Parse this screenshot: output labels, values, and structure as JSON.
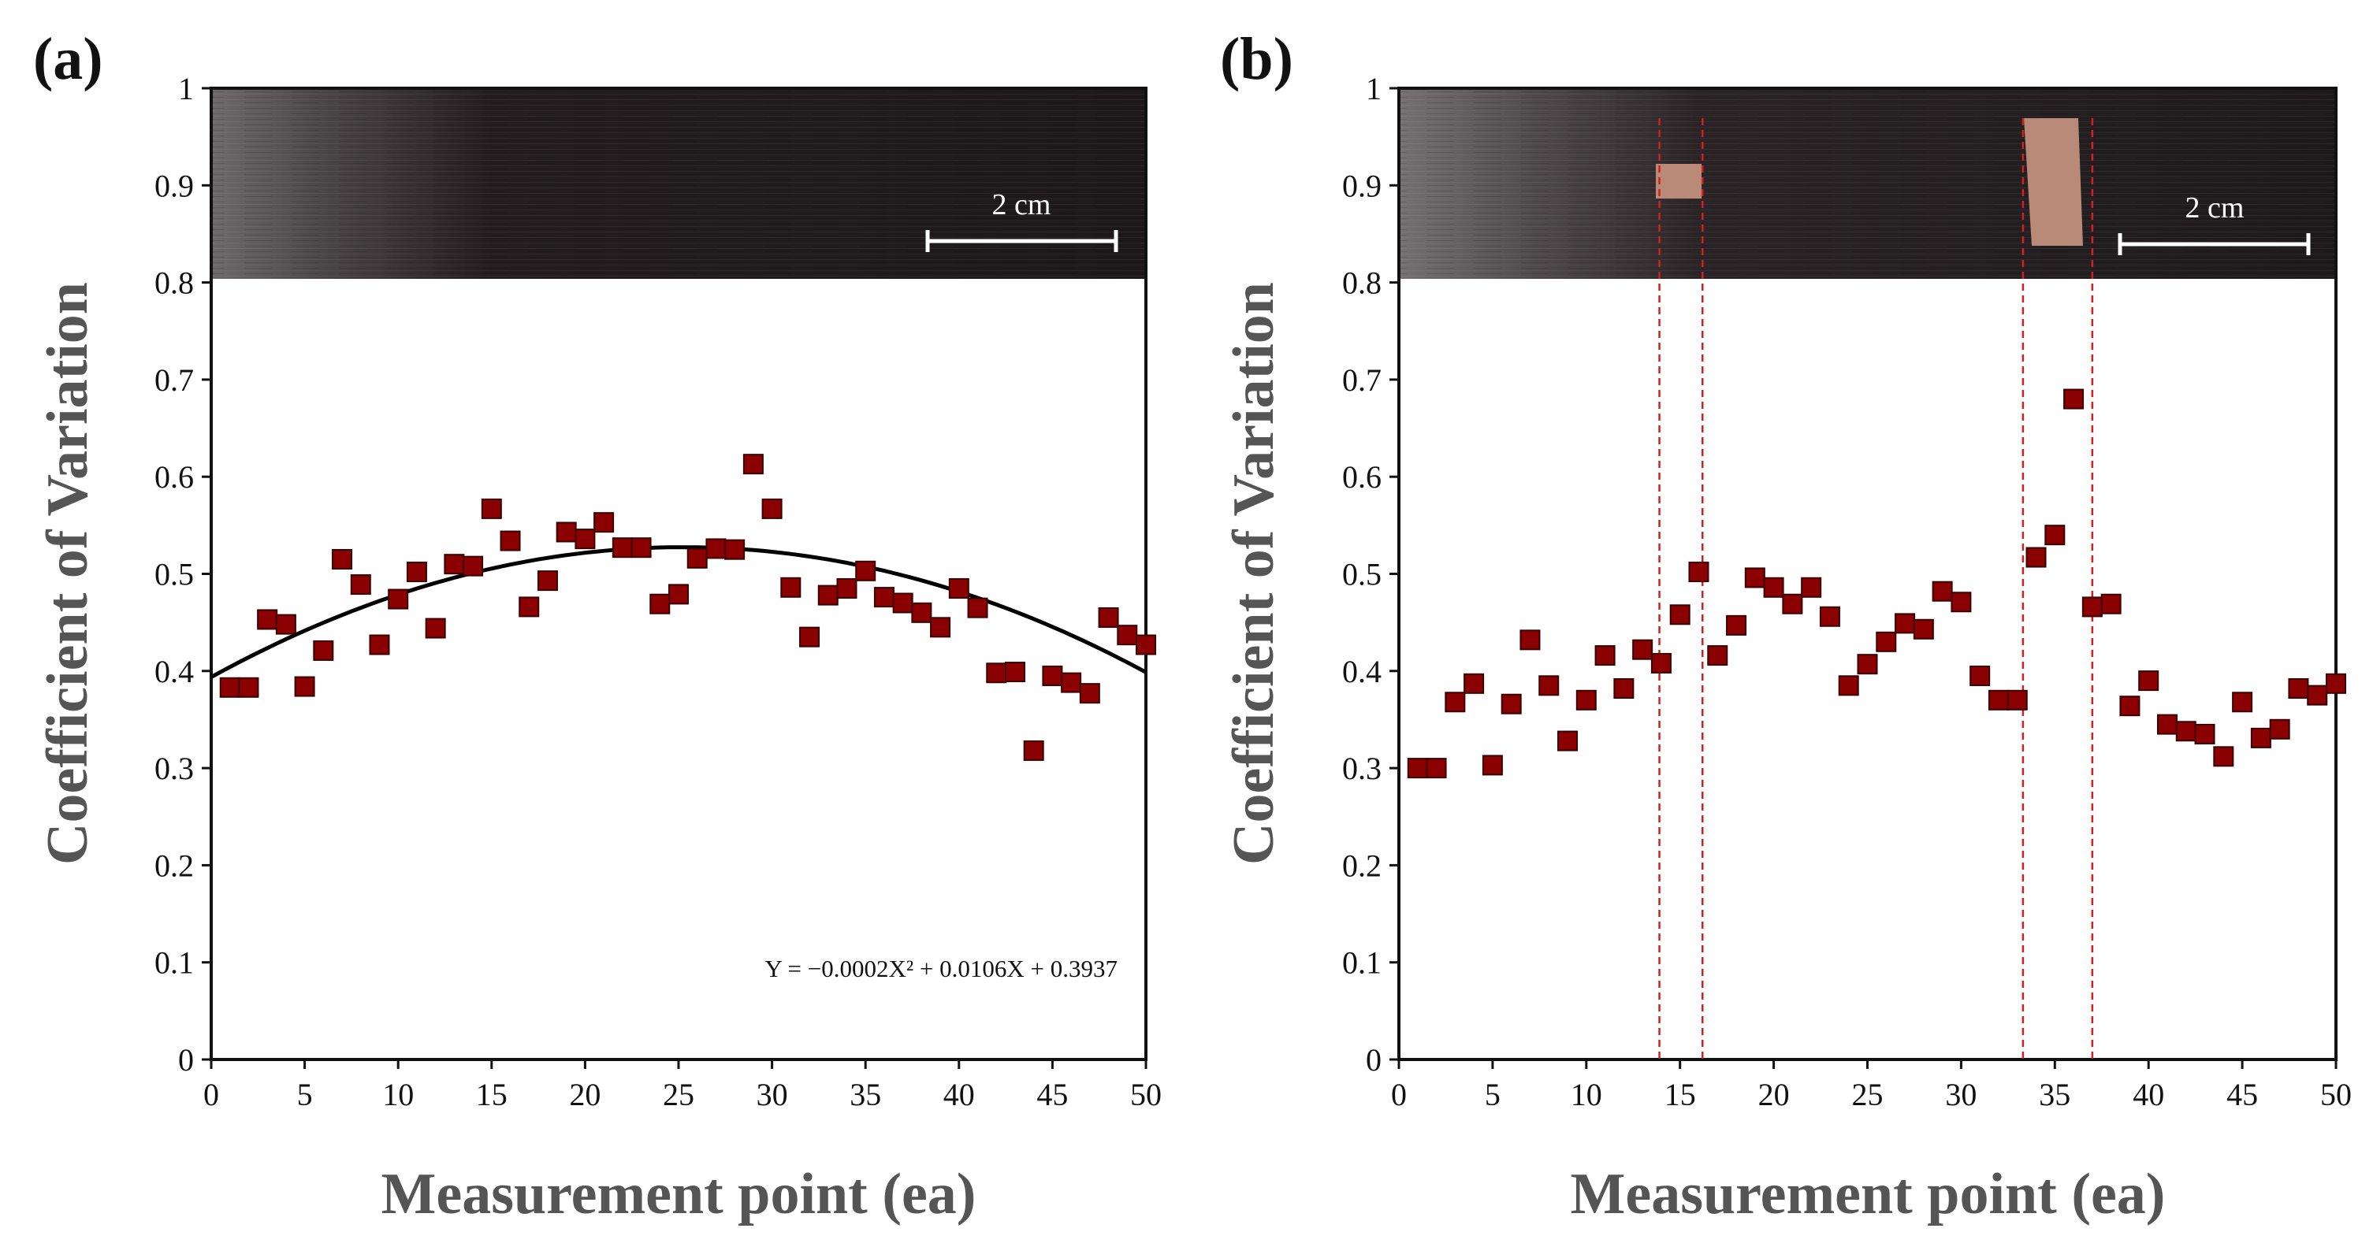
{
  "colors": {
    "marker": "#8b0000",
    "fit_line": "#000000",
    "guide_line": "#d02020",
    "text": "#111111",
    "strip_dark": "#1e1a1c",
    "patch": "#b98a78"
  },
  "chart_data": [
    {
      "panel_label": "(a)",
      "type": "scatter",
      "xlabel": "Measurement point (ea)",
      "ylabel": "Coefficient of Variation",
      "xlim": [
        0,
        50
      ],
      "ylim": [
        0,
        1
      ],
      "xticks": [
        "0",
        "5",
        "10",
        "15",
        "20",
        "25",
        "30",
        "35",
        "40",
        "45",
        "50"
      ],
      "yticks": [
        "0",
        "0.1",
        "0.2",
        "0.3",
        "0.4",
        "0.5",
        "0.6",
        "0.7",
        "0.8",
        "0.9",
        "1"
      ],
      "scale_bar_label": "2 cm",
      "x": [
        1,
        2,
        3,
        4,
        5,
        6,
        7,
        8,
        9,
        10,
        11,
        12,
        13,
        14,
        15,
        16,
        17,
        18,
        19,
        20,
        21,
        22,
        23,
        24,
        25,
        26,
        27,
        28,
        29,
        30,
        31,
        32,
        33,
        34,
        35,
        36,
        37,
        38,
        39,
        40,
        41,
        42,
        43,
        44,
        45,
        46,
        47,
        48,
        49,
        50
      ],
      "y": [
        0.383,
        0.383,
        0.453,
        0.448,
        0.384,
        0.421,
        0.515,
        0.489,
        0.427,
        0.474,
        0.502,
        0.444,
        0.51,
        0.508,
        0.567,
        0.534,
        0.466,
        0.493,
        0.543,
        0.536,
        0.553,
        0.527,
        0.527,
        0.469,
        0.479,
        0.516,
        0.526,
        0.525,
        0.613,
        0.567,
        0.486,
        0.435,
        0.478,
        0.485,
        0.503,
        0.476,
        0.47,
        0.46,
        0.445,
        0.485,
        0.465,
        0.398,
        0.399,
        0.318,
        0.395,
        0.388,
        0.377,
        0.455,
        0.437,
        0.427
      ],
      "fit": {
        "equation": "Y = −0.0002X² + 0.0106X + 0.3937",
        "a": -0.00021,
        "b": 0.0106,
        "c": 0.3937
      }
    },
    {
      "panel_label": "(b)",
      "type": "scatter",
      "xlabel": "Measurement point (ea)",
      "ylabel": "Coefficient of Variation",
      "xlim": [
        0,
        50
      ],
      "ylim": [
        0,
        1
      ],
      "xticks": [
        "0",
        "5",
        "10",
        "15",
        "20",
        "25",
        "30",
        "35",
        "40",
        "45",
        "50"
      ],
      "yticks": [
        "0",
        "0.1",
        "0.2",
        "0.3",
        "0.4",
        "0.5",
        "0.6",
        "0.7",
        "0.8",
        "0.9",
        "1"
      ],
      "scale_bar_label": "2 cm",
      "x": [
        1,
        2,
        3,
        4,
        5,
        6,
        7,
        8,
        9,
        10,
        11,
        12,
        13,
        14,
        15,
        16,
        17,
        18,
        19,
        20,
        21,
        22,
        23,
        24,
        25,
        26,
        27,
        28,
        29,
        30,
        31,
        32,
        33,
        34,
        35,
        36,
        37,
        38,
        39,
        40,
        41,
        42,
        43,
        44,
        45,
        46,
        47,
        48,
        49,
        50
      ],
      "y": [
        0.3,
        0.3,
        0.368,
        0.387,
        0.303,
        0.366,
        0.432,
        0.385,
        0.328,
        0.37,
        0.416,
        0.382,
        0.422,
        0.408,
        0.458,
        0.502,
        0.416,
        0.447,
        0.496,
        0.486,
        0.469,
        0.486,
        0.456,
        0.385,
        0.407,
        0.43,
        0.449,
        0.443,
        0.482,
        0.471,
        0.395,
        0.37,
        0.37,
        0.517,
        0.54,
        0.68,
        0.466,
        0.469,
        0.364,
        0.39,
        0.345,
        0.338,
        0.335,
        0.312,
        0.368,
        0.331,
        0.34,
        0.382,
        0.375,
        0.387
      ],
      "guide_x": [
        13.9,
        16.2,
        33.3,
        37.0
      ]
    }
  ]
}
